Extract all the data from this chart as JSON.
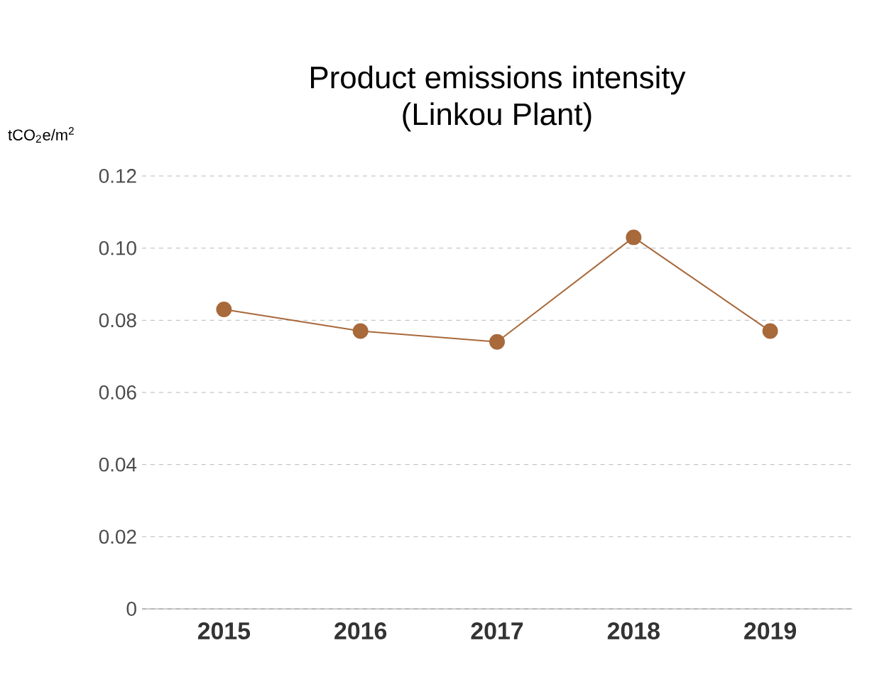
{
  "chart_data": {
    "type": "line",
    "title": "Product emissions intensity\n(Linkou Plant)",
    "ylabel": "tCO$_{2}$e/m$^{2}$",
    "categories": [
      "2015",
      "2016",
      "2017",
      "2018",
      "2019"
    ],
    "series": [
      {
        "color": "#a8693b",
        "values": [
          0.083,
          0.077,
          0.074,
          0.103,
          0.077
        ]
      }
    ],
    "ylim": [
      0,
      0.12
    ],
    "yticks": [
      {
        "value": 0,
        "label": "0"
      },
      {
        "value": 0.02,
        "label": "0.02"
      },
      {
        "value": 0.04,
        "label": "0.04"
      },
      {
        "value": 0.06,
        "label": "0.06"
      },
      {
        "value": 0.08,
        "label": "0.08"
      },
      {
        "value": 0.1,
        "label": "0.10"
      },
      {
        "value": 0.12,
        "label": "0.12"
      }
    ],
    "grid": "y",
    "marker": "circle",
    "line_style": "solid"
  }
}
